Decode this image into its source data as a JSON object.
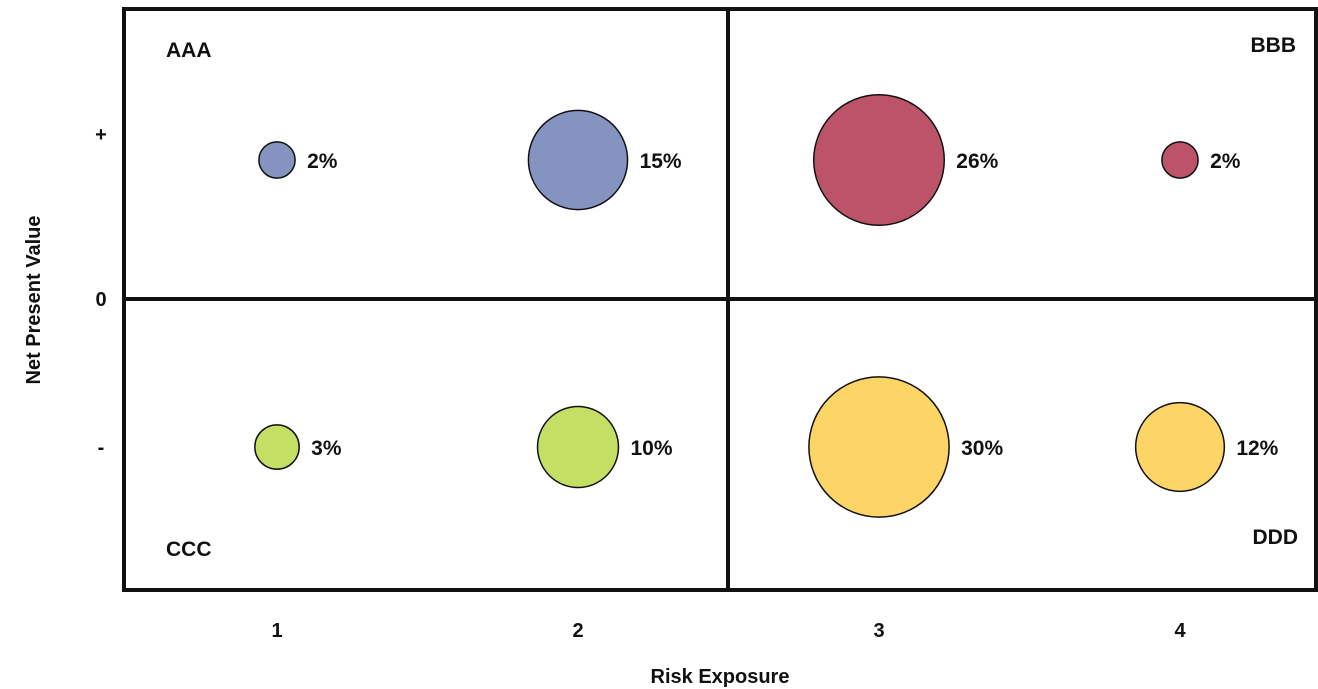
{
  "chart_data": {
    "type": "bubble",
    "title": "",
    "xlabel": "Risk Exposure",
    "ylabel": "Net Present Value",
    "x_ticks": [
      "1",
      "2",
      "3",
      "4"
    ],
    "y_ticks": [
      "+",
      "0",
      "-"
    ],
    "xlim": [
      0.5,
      4.5
    ],
    "x_divider": 2.5,
    "grid": false,
    "legend": "none",
    "quadrants": [
      {
        "name": "AAA",
        "position": "top-left"
      },
      {
        "name": "BBB",
        "position": "top-right"
      },
      {
        "name": "CCC",
        "position": "bottom-left"
      },
      {
        "name": "DDD",
        "position": "bottom-right"
      }
    ],
    "points": [
      {
        "x": 1,
        "y": "+",
        "value": 2,
        "label": "2%",
        "color": "#8593c1"
      },
      {
        "x": 2,
        "y": "+",
        "value": 15,
        "label": "15%",
        "color": "#8593c1"
      },
      {
        "x": 3,
        "y": "+",
        "value": 26,
        "label": "26%",
        "color": "#bd5369"
      },
      {
        "x": 4,
        "y": "+",
        "value": 2,
        "label": "2%",
        "color": "#bd5369"
      },
      {
        "x": 1,
        "y": "-",
        "value": 3,
        "label": "3%",
        "color": "#c5df65"
      },
      {
        "x": 2,
        "y": "-",
        "value": 10,
        "label": "10%",
        "color": "#c5df65"
      },
      {
        "x": 3,
        "y": "-",
        "value": 30,
        "label": "30%",
        "color": "#fdd466"
      },
      {
        "x": 4,
        "y": "-",
        "value": 12,
        "label": "12%",
        "color": "#fdd466"
      }
    ]
  }
}
